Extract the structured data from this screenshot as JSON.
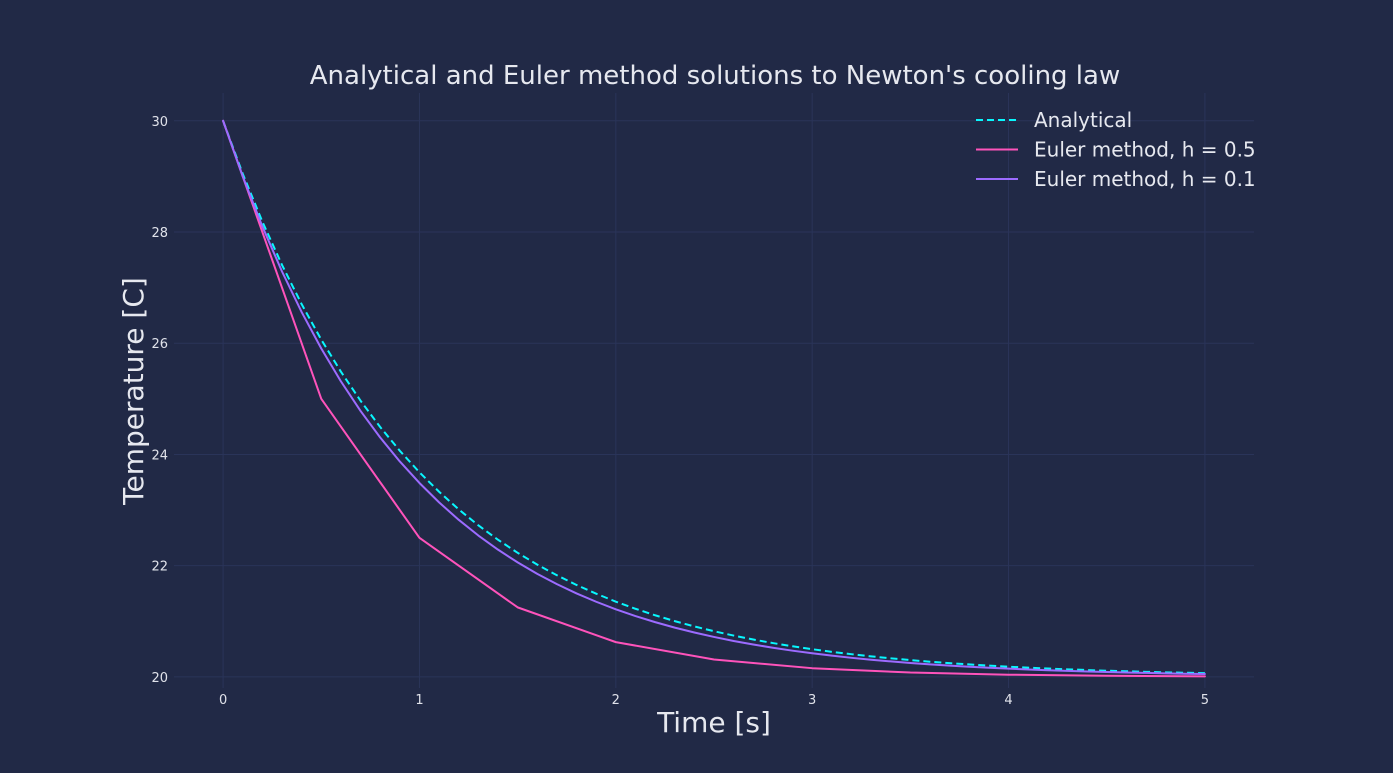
{
  "chart_data": {
    "type": "line",
    "title": "Analytical and Euler method solutions to Newton's cooling law",
    "xlabel": "Time [s]",
    "ylabel": "Temperature [C]",
    "xlim": [
      -0.25,
      5.25
    ],
    "ylim": [
      19.8,
      30.5
    ],
    "xticks": [
      0,
      1,
      2,
      3,
      4,
      5
    ],
    "yticks": [
      20,
      22,
      24,
      26,
      28,
      30
    ],
    "grid": true,
    "legend_position": "top-right",
    "background": "#212946",
    "grid_color": "#2A3459",
    "series": [
      {
        "name": "Analytical",
        "color": "#08F7FE",
        "style": "dashed",
        "x": [
          0,
          0.1,
          0.2,
          0.3,
          0.4,
          0.5,
          0.6,
          0.7,
          0.8,
          0.9,
          1.0,
          1.1,
          1.2,
          1.3,
          1.4,
          1.5,
          1.6,
          1.7,
          1.8,
          1.9,
          2.0,
          2.1,
          2.2,
          2.3,
          2.4,
          2.5,
          2.6,
          2.7,
          2.8,
          2.9,
          3.0,
          3.1,
          3.2,
          3.3,
          3.4,
          3.5,
          3.6,
          3.7,
          3.8,
          3.9,
          4.0,
          4.1,
          4.2,
          4.3,
          4.4,
          4.5,
          4.6,
          4.7,
          4.8,
          4.9,
          5.0
        ],
        "y": [
          30.0,
          29.048,
          28.187,
          27.408,
          26.703,
          26.065,
          25.488,
          24.966,
          24.493,
          24.066,
          23.679,
          23.329,
          23.012,
          22.725,
          22.466,
          22.231,
          22.019,
          21.827,
          21.653,
          21.496,
          21.353,
          21.225,
          21.108,
          21.003,
          20.907,
          20.821,
          20.743,
          20.672,
          20.608,
          20.55,
          20.498,
          20.45,
          20.408,
          20.369,
          20.334,
          20.302,
          20.273,
          20.247,
          20.224,
          20.202,
          20.183,
          20.166,
          20.15,
          20.136,
          20.123,
          20.111,
          20.101,
          20.091,
          20.082,
          20.074,
          20.067
        ]
      },
      {
        "name": "Euler method, h = 0.5",
        "color": "#FE53BB",
        "style": "solid",
        "x": [
          0,
          0.5,
          1.0,
          1.5,
          2.0,
          2.5,
          3.0,
          3.5,
          4.0,
          4.5,
          5.0
        ],
        "y": [
          30.0,
          25.0,
          22.5,
          21.25,
          20.625,
          20.3125,
          20.15625,
          20.078,
          20.039,
          20.02,
          20.01
        ]
      },
      {
        "name": "Euler method, h = 0.1",
        "color": "#9C6BFF",
        "style": "solid",
        "x": [
          0,
          0.1,
          0.2,
          0.3,
          0.4,
          0.5,
          0.6,
          0.7,
          0.8,
          0.9,
          1.0,
          1.1,
          1.2,
          1.3,
          1.4,
          1.5,
          1.6,
          1.7,
          1.8,
          1.9,
          2.0,
          2.1,
          2.2,
          2.3,
          2.4,
          2.5,
          2.6,
          2.7,
          2.8,
          2.9,
          3.0,
          3.1,
          3.2,
          3.3,
          3.4,
          3.5,
          3.6,
          3.7,
          3.8,
          3.9,
          4.0,
          4.1,
          4.2,
          4.3,
          4.4,
          4.5,
          4.6,
          4.7,
          4.8,
          4.9,
          5.0
        ],
        "y": [
          30.0,
          29.0,
          28.1,
          27.29,
          26.561,
          25.905,
          25.314,
          24.783,
          24.305,
          23.874,
          23.487,
          23.138,
          22.824,
          22.542,
          22.288,
          22.059,
          21.853,
          21.668,
          21.501,
          21.351,
          21.216,
          21.094,
          20.985,
          20.886,
          20.798,
          20.718,
          20.646,
          20.582,
          20.524,
          20.471,
          20.424,
          20.382,
          20.343,
          20.309,
          20.278,
          20.25,
          20.225,
          20.203,
          20.182,
          20.164,
          20.148,
          20.133,
          20.12,
          20.108,
          20.097,
          20.087,
          20.079,
          20.071,
          20.064,
          20.057,
          20.052
        ]
      }
    ]
  }
}
